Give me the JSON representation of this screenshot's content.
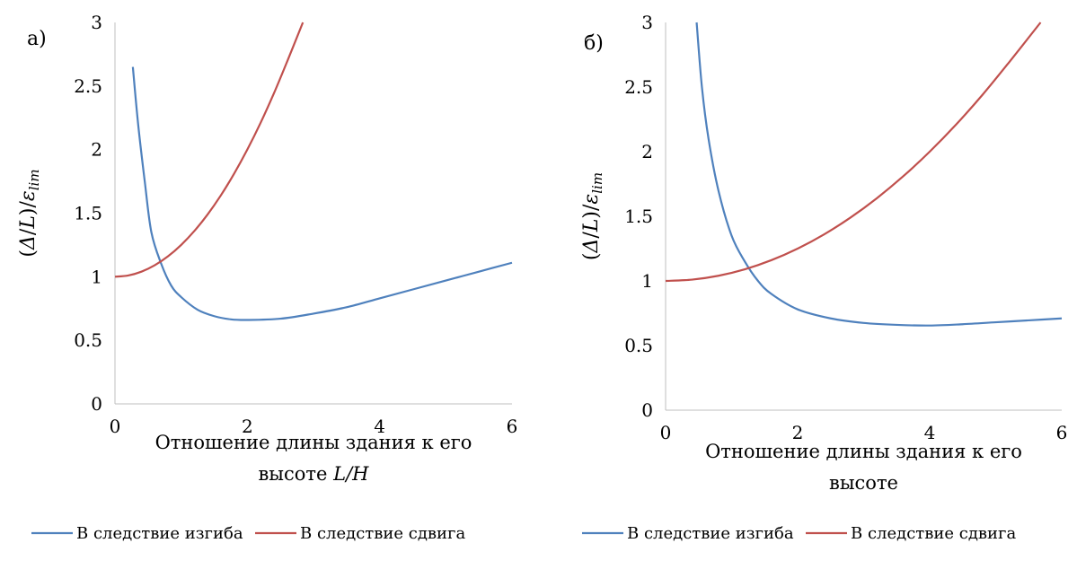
{
  "chart_data": [
    {
      "type": "line",
      "panel_label": "а)",
      "xlabel_line1": "Отношение длины здания к его",
      "xlabel_line2": "высоте L/H",
      "ylabel": "(Δ/L)/ε_lim",
      "xlim": [
        0,
        6
      ],
      "ylim": [
        0,
        3
      ],
      "x_ticks": [
        "0",
        "2",
        "4",
        "6"
      ],
      "y_ticks": [
        "0",
        "0.5",
        "1",
        "1.5",
        "2",
        "2.5",
        "3"
      ],
      "grid": false,
      "legend_position": "bottom",
      "series": [
        {
          "name": "В следствие изгиба",
          "color": "#4f81bd",
          "points": [
            [
              0.27,
              2.65
            ],
            [
              0.35,
              2.2
            ],
            [
              0.45,
              1.75
            ],
            [
              0.55,
              1.35
            ],
            [
              0.7,
              1.1
            ],
            [
              0.85,
              0.93
            ],
            [
              1.0,
              0.84
            ],
            [
              1.25,
              0.74
            ],
            [
              1.5,
              0.69
            ],
            [
              1.75,
              0.665
            ],
            [
              2.0,
              0.66
            ],
            [
              2.5,
              0.67
            ],
            [
              3.0,
              0.71
            ],
            [
              3.5,
              0.76
            ],
            [
              4.0,
              0.83
            ],
            [
              4.5,
              0.9
            ],
            [
              5.0,
              0.97
            ],
            [
              5.5,
              1.04
            ],
            [
              6.0,
              1.11
            ]
          ]
        },
        {
          "name": "В следствие сдвига",
          "color": "#c0504d",
          "points": [
            [
              0.0,
              1.0
            ],
            [
              0.2,
              1.01
            ],
            [
              0.4,
              1.04
            ],
            [
              0.6,
              1.09
            ],
            [
              0.8,
              1.16
            ],
            [
              1.0,
              1.25
            ],
            [
              1.2,
              1.36
            ],
            [
              1.4,
              1.49
            ],
            [
              1.6,
              1.64
            ],
            [
              1.8,
              1.81
            ],
            [
              2.0,
              2.0
            ],
            [
              2.2,
              2.21
            ],
            [
              2.4,
              2.44
            ],
            [
              2.6,
              2.69
            ],
            [
              2.84,
              3.0
            ]
          ]
        }
      ]
    },
    {
      "type": "line",
      "panel_label": "б)",
      "xlabel_line1": "Отношение длины здания к его",
      "xlabel_line2": "высоте",
      "ylabel": "(Δ/L)/ε_lim",
      "xlim": [
        0,
        6
      ],
      "ylim": [
        0,
        3
      ],
      "x_ticks": [
        "0",
        "2",
        "4",
        "6"
      ],
      "y_ticks": [
        "0",
        "0.5",
        "1",
        "1.5",
        "2",
        "2.5",
        "3"
      ],
      "grid": false,
      "legend_position": "bottom",
      "series": [
        {
          "name": "В следствие изгиба",
          "color": "#4f81bd",
          "points": [
            [
              0.47,
              3.0
            ],
            [
              0.55,
              2.5
            ],
            [
              0.65,
              2.1
            ],
            [
              0.8,
              1.7
            ],
            [
              1.0,
              1.35
            ],
            [
              1.2,
              1.15
            ],
            [
              1.4,
              1.0
            ],
            [
              1.6,
              0.9
            ],
            [
              2.0,
              0.78
            ],
            [
              2.5,
              0.71
            ],
            [
              3.0,
              0.675
            ],
            [
              3.5,
              0.66
            ],
            [
              4.0,
              0.655
            ],
            [
              4.5,
              0.665
            ],
            [
              5.0,
              0.68
            ],
            [
              5.5,
              0.695
            ],
            [
              6.0,
              0.71
            ]
          ]
        },
        {
          "name": "В следствие сдвига",
          "color": "#c0504d",
          "points": [
            [
              0.0,
              1.0
            ],
            [
              0.4,
              1.01
            ],
            [
              0.8,
              1.04
            ],
            [
              1.2,
              1.09
            ],
            [
              1.6,
              1.16
            ],
            [
              2.0,
              1.25
            ],
            [
              2.4,
              1.36
            ],
            [
              2.8,
              1.49
            ],
            [
              3.2,
              1.64
            ],
            [
              3.6,
              1.81
            ],
            [
              4.0,
              2.0
            ],
            [
              4.4,
              2.21
            ],
            [
              4.8,
              2.44
            ],
            [
              5.2,
              2.69
            ],
            [
              5.68,
              3.0
            ]
          ]
        }
      ]
    }
  ]
}
